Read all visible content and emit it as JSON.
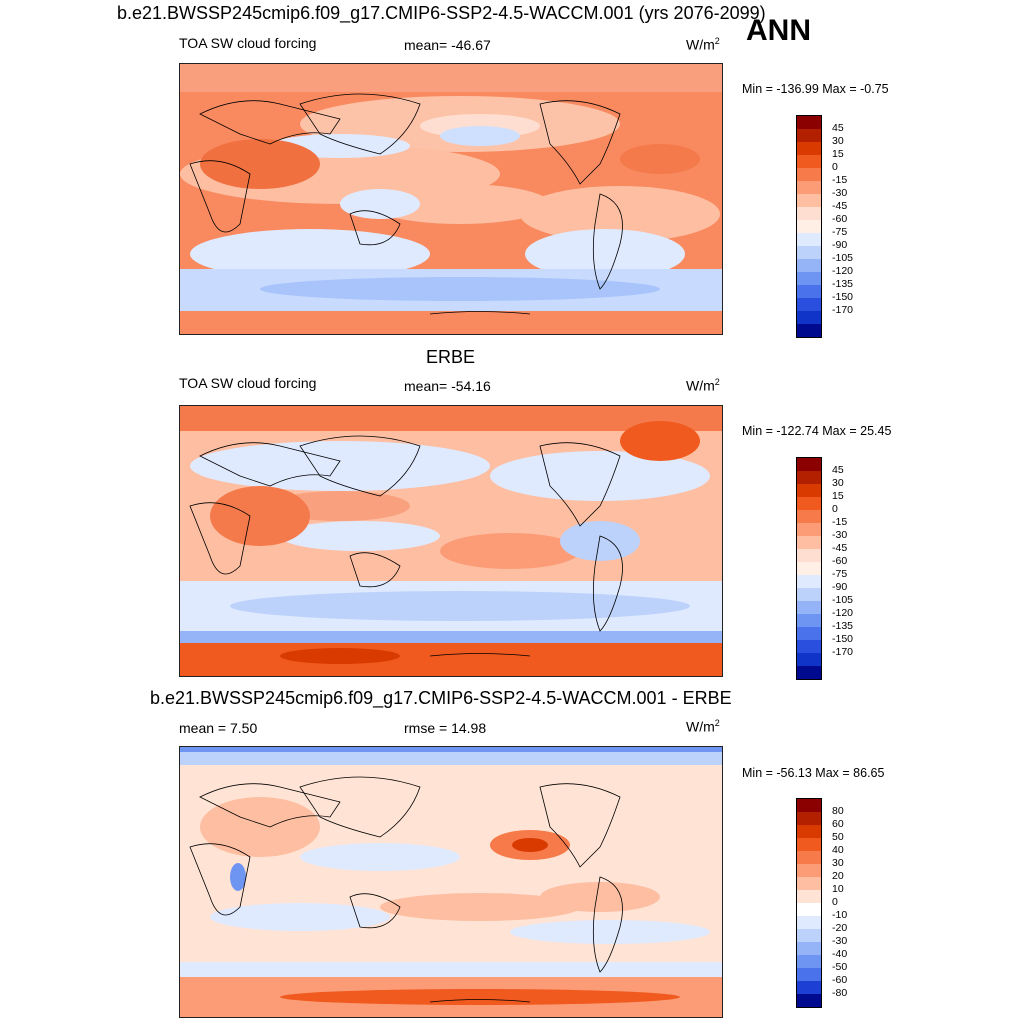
{
  "header": {
    "main_title": "b.e21.BWSSP245cmip6.f09_g17.CMIP6-SSP2-4.5-WACCM.001 (yrs 2076-2099)",
    "season": "ANN"
  },
  "panel1": {
    "variable": "TOA SW cloud forcing",
    "stat": "mean= -46.67",
    "units": "W/m",
    "units_exp": "2",
    "minmax": "Min = -136.99 Max =  -0.75"
  },
  "panel2": {
    "title": "ERBE",
    "variable": "TOA SW cloud forcing",
    "stat": "mean= -54.16",
    "units": "W/m",
    "units_exp": "2",
    "minmax": "Min = -122.74 Max =  25.45"
  },
  "panel3": {
    "title": "b.e21.BWSSP245cmip6.f09_g17.CMIP6-SSP2-4.5-WACCM.001 - ERBE",
    "stat_mean": "mean =   7.50",
    "stat_rmse": "rmse =  14.98",
    "units": "W/m",
    "units_exp": "2",
    "minmax": "Min = -56.13 Max =  86.65"
  },
  "colorbar_abs": {
    "labels": [
      "45",
      "30",
      "15",
      "0",
      "-15",
      "-30",
      "-45",
      "-60",
      "-75",
      "-90",
      "-105",
      "-120",
      "-135",
      "-150",
      "-170"
    ],
    "colors": [
      "#8b0000",
      "#b22000",
      "#d93a00",
      "#f05a1e",
      "#f77a4a",
      "#fb9c77",
      "#fdbea2",
      "#feded0",
      "#ffefe4",
      "#dfeaff",
      "#bcd2fb",
      "#94b4f7",
      "#6f95f2",
      "#4a72ea",
      "#2a4fdf",
      "#1033c8",
      "#000a8f"
    ]
  },
  "colorbar_diff": {
    "labels": [
      "80",
      "60",
      "50",
      "40",
      "30",
      "20",
      "10",
      "0",
      "-10",
      "-20",
      "-30",
      "-40",
      "-50",
      "-60",
      "-80"
    ],
    "colors": [
      "#8b0000",
      "#b22000",
      "#d93a00",
      "#f05a1e",
      "#f77a4a",
      "#fb9c77",
      "#fdbea2",
      "#ffe3d4",
      "#ffffff",
      "#dfeaff",
      "#bcd2fb",
      "#94b4f7",
      "#6f95f2",
      "#4a72ea",
      "#1e3fd3",
      "#000a8f"
    ]
  }
}
